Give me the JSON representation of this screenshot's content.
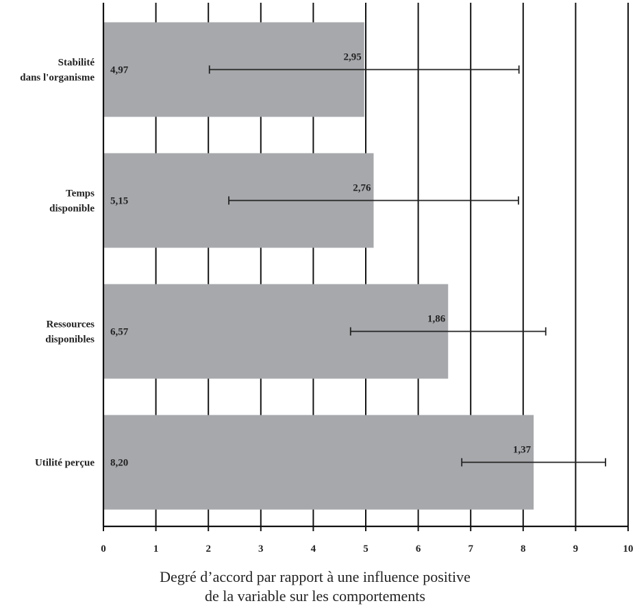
{
  "chart_data": {
    "type": "bar",
    "orientation": "horizontal",
    "categories": [
      [
        "Stabilité",
        "dans l'organisme"
      ],
      [
        "Temps",
        "disponible"
      ],
      [
        "Ressources",
        "disponibles"
      ],
      [
        "Utilité perçue"
      ]
    ],
    "values": [
      4.97,
      5.15,
      6.57,
      8.2
    ],
    "value_labels": [
      "4,97",
      "5,15",
      "6,57",
      "8,20"
    ],
    "error_sd": [
      2.95,
      2.76,
      1.86,
      1.37
    ],
    "error_labels": [
      "2,95",
      "2,76",
      "1,86",
      "1,37"
    ],
    "xlim": [
      0,
      10
    ],
    "xticks": [
      0,
      1,
      2,
      3,
      4,
      5,
      6,
      7,
      8,
      9,
      10
    ],
    "xtick_labels": [
      "0",
      "1",
      "2",
      "3",
      "4",
      "5",
      "6",
      "7",
      "8",
      "9",
      "10"
    ],
    "xlabel": [
      "Degré d’accord par rapport à une influence positive",
      "de la variable sur les comportements"
    ],
    "grid": "vertical",
    "colors": {
      "bar": "#a7a8ac",
      "axis": "#111111"
    }
  }
}
